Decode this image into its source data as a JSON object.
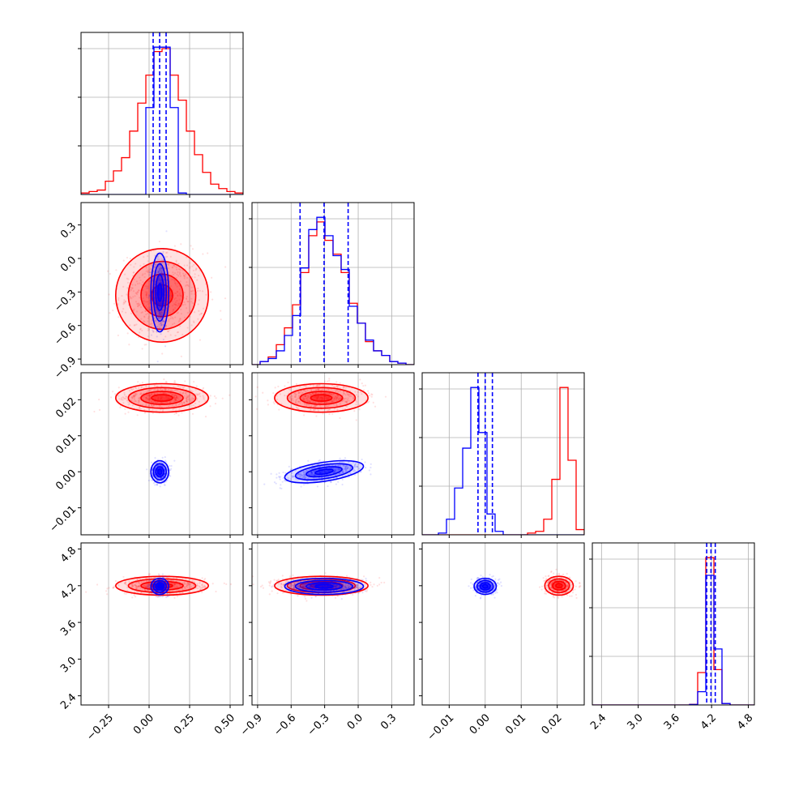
{
  "chart_data": {
    "type": "scatter",
    "title": "",
    "subtitle": "",
    "style": {
      "colors": {
        "blue_series": "#0000ff",
        "red_series": "#ff0000",
        "grid": "#b0b0b0",
        "axes": "#000000"
      },
      "grid": true,
      "legend": "none",
      "layout": "corner plot (lower-triangular 4x4)",
      "quantile_lines": "dashed"
    },
    "parameters": [
      {
        "index": 0,
        "range": [
          -0.42,
          0.58
        ],
        "ticks": [
          -0.25,
          0.0,
          0.25,
          0.5
        ],
        "tick_labels": [
          "−0.25",
          "0.00",
          "0.25",
          "0.50"
        ],
        "grid_lines": [
          -0.25,
          0.0,
          0.25,
          0.5
        ]
      },
      {
        "index": 1,
        "range": [
          -0.95,
          0.5
        ],
        "ticks": [
          -0.9,
          -0.6,
          -0.3,
          0.0,
          0.3
        ],
        "tick_labels": [
          "−0.9",
          "−0.6",
          "−0.3",
          "0.0",
          "0.3"
        ],
        "grid_lines": [
          -0.9,
          -0.6,
          -0.3,
          0.0,
          0.3
        ]
      },
      {
        "index": 2,
        "range": [
          -0.0175,
          0.0275
        ],
        "ticks": [
          -0.01,
          0.0,
          0.01,
          0.02
        ],
        "tick_labels": [
          "−0.01",
          "0.00",
          "0.01",
          "0.02"
        ],
        "grid_lines": [
          -0.01,
          0.0,
          0.01,
          0.02
        ]
      },
      {
        "index": 3,
        "range": [
          2.25,
          4.9
        ],
        "ticks": [
          2.4,
          3.0,
          3.6,
          4.2,
          4.8
        ],
        "tick_labels": [
          "2.4",
          "3.0",
          "3.6",
          "4.2",
          "4.8"
        ],
        "grid_lines": [
          2.4,
          3.0,
          3.6,
          4.2,
          4.8
        ]
      }
    ],
    "series": [
      {
        "color": "#0000ff",
        "quantiles": [
          [
            0.025,
            0.065,
            0.105
          ],
          [
            -0.52,
            -0.305,
            -0.09
          ],
          [
            -0.002,
            0.0,
            0.002
          ],
          [
            4.12,
            4.19,
            4.26
          ]
        ],
        "histograms": [
          {
            "edges": [
              -0.42,
              -0.37,
              -0.32,
              -0.27,
              -0.22,
              -0.17,
              -0.12,
              -0.07,
              -0.02,
              0.03,
              0.08,
              0.13,
              0.18,
              0.23,
              0.28,
              0.33,
              0.38,
              0.43,
              0.48,
              0.53,
              0.58
            ],
            "counts": [
              0,
              0,
              0,
              0,
              0,
              0,
              0,
              0,
              0.59,
              1.0,
              1.0,
              0.59,
              0.01,
              0,
              0,
              0,
              0,
              0,
              0,
              0
            ]
          },
          {
            "edges": [
              -0.95,
              -0.8775,
              -0.805,
              -0.7325,
              -0.66,
              -0.5875,
              -0.515,
              -0.4425,
              -0.37,
              -0.2975,
              -0.225,
              -0.1525,
              -0.08,
              -0.0075,
              0.065,
              0.1375,
              0.21,
              0.2825,
              0.355,
              0.4275,
              0.5
            ],
            "counts": [
              0,
              0.02,
              0.04,
              0.09,
              0.19,
              0.32,
              0.63,
              0.88,
              0.96,
              0.84,
              0.71,
              0.62,
              0.38,
              0.27,
              0.16,
              0.09,
              0.06,
              0.02,
              0.01,
              0
            ]
          },
          {
            "edges": [
              -0.0175,
              -0.01525,
              -0.013,
              -0.01075,
              -0.0085,
              -0.00625,
              -0.004,
              -0.00175,
              0.0005,
              0.00275,
              0.005,
              0.00725,
              0.0095,
              0.01175,
              0.014,
              0.01625,
              0.0185,
              0.02075,
              0.023,
              0.02525,
              0.0275
            ],
            "counts": [
              0,
              0,
              0.01,
              0.09,
              0.27,
              0.5,
              0.85,
              0.59,
              0.12,
              0.02,
              0,
              0,
              0,
              0,
              0,
              0,
              0,
              0,
              0,
              0
            ]
          },
          {
            "edges": [
              2.25,
              2.3825,
              2.515,
              2.6475,
              2.78,
              2.9125,
              3.045,
              3.1775,
              3.31,
              3.4425,
              3.575,
              3.7075,
              3.84,
              3.9725,
              4.105,
              4.2375,
              4.37,
              4.5025,
              4.635,
              4.7675,
              4.9
            ],
            "counts": [
              0,
              0,
              0,
              0,
              0,
              0,
              0,
              0,
              0,
              0,
              0,
              0,
              0.003,
              0.09,
              0.88,
              0.38,
              0.01,
              0,
              0,
              0
            ]
          }
        ],
        "distribution": {
          "mean": [
            0.066,
            -0.305,
            0.0,
            4.19
          ],
          "sd": [
            0.025,
            0.16,
            0.0014,
            0.06
          ],
          "corr": {
            "1-2": 0.5
          }
        }
      },
      {
        "color": "#ff0000",
        "quantiles": null,
        "histograms": [
          {
            "edges": [
              -0.42,
              -0.37,
              -0.32,
              -0.27,
              -0.22,
              -0.17,
              -0.12,
              -0.07,
              -0.02,
              0.03,
              0.08,
              0.13,
              0.18,
              0.23,
              0.28,
              0.33,
              0.38,
              0.43,
              0.48,
              0.53,
              0.58
            ],
            "counts": [
              0.01,
              0.02,
              0.03,
              0.09,
              0.16,
              0.25,
              0.43,
              0.62,
              0.81,
              0.97,
              0.99,
              0.81,
              0.64,
              0.43,
              0.27,
              0.15,
              0.07,
              0.04,
              0.02,
              0.01
            ]
          },
          {
            "edges": [
              -0.95,
              -0.8775,
              -0.805,
              -0.7325,
              -0.66,
              -0.5875,
              -0.515,
              -0.4425,
              -0.37,
              -0.2975,
              -0.225,
              -0.1525,
              -0.08,
              -0.0075,
              0.065,
              0.1375,
              0.21,
              0.2825,
              0.355,
              0.4275,
              0.5
            ],
            "counts": [
              0,
              0.02,
              0.05,
              0.13,
              0.24,
              0.39,
              0.6,
              0.84,
              0.93,
              0.81,
              0.72,
              0.6,
              0.4,
              0.27,
              0.15,
              0.09,
              0.06,
              0.02,
              0.01,
              0
            ]
          },
          {
            "edges": [
              -0.0175,
              -0.01525,
              -0.013,
              -0.01075,
              -0.0085,
              -0.00625,
              -0.004,
              -0.00175,
              0.0005,
              0.00275,
              0.005,
              0.00725,
              0.0095,
              0.01175,
              0.014,
              0.01625,
              0.0185,
              0.02075,
              0.023,
              0.02525,
              0.0275
            ],
            "counts": [
              0,
              0,
              0,
              0,
              0,
              0,
              0,
              0,
              0,
              0,
              0,
              0,
              0,
              0.01,
              0.02,
              0.09,
              0.32,
              0.85,
              0.43,
              0.03
            ]
          },
          {
            "edges": [
              2.25,
              2.3825,
              2.515,
              2.6475,
              2.78,
              2.9125,
              3.045,
              3.1775,
              3.31,
              3.4425,
              3.575,
              3.7075,
              3.84,
              3.9725,
              4.105,
              4.2375,
              4.37,
              4.5025,
              4.635,
              4.7675,
              4.9
            ],
            "counts": [
              0,
              0,
              0,
              0,
              0,
              0,
              0,
              0,
              0,
              0,
              0,
              0,
              0.004,
              0.22,
              1.0,
              0.24,
              0.01,
              0,
              0,
              0
            ]
          }
        ],
        "distribution": {
          "mean": [
            0.08,
            -0.33,
            0.0205,
            4.2
          ],
          "sd": [
            0.13,
            0.19,
            0.0018,
            0.07
          ],
          "corr": {}
        }
      }
    ]
  }
}
